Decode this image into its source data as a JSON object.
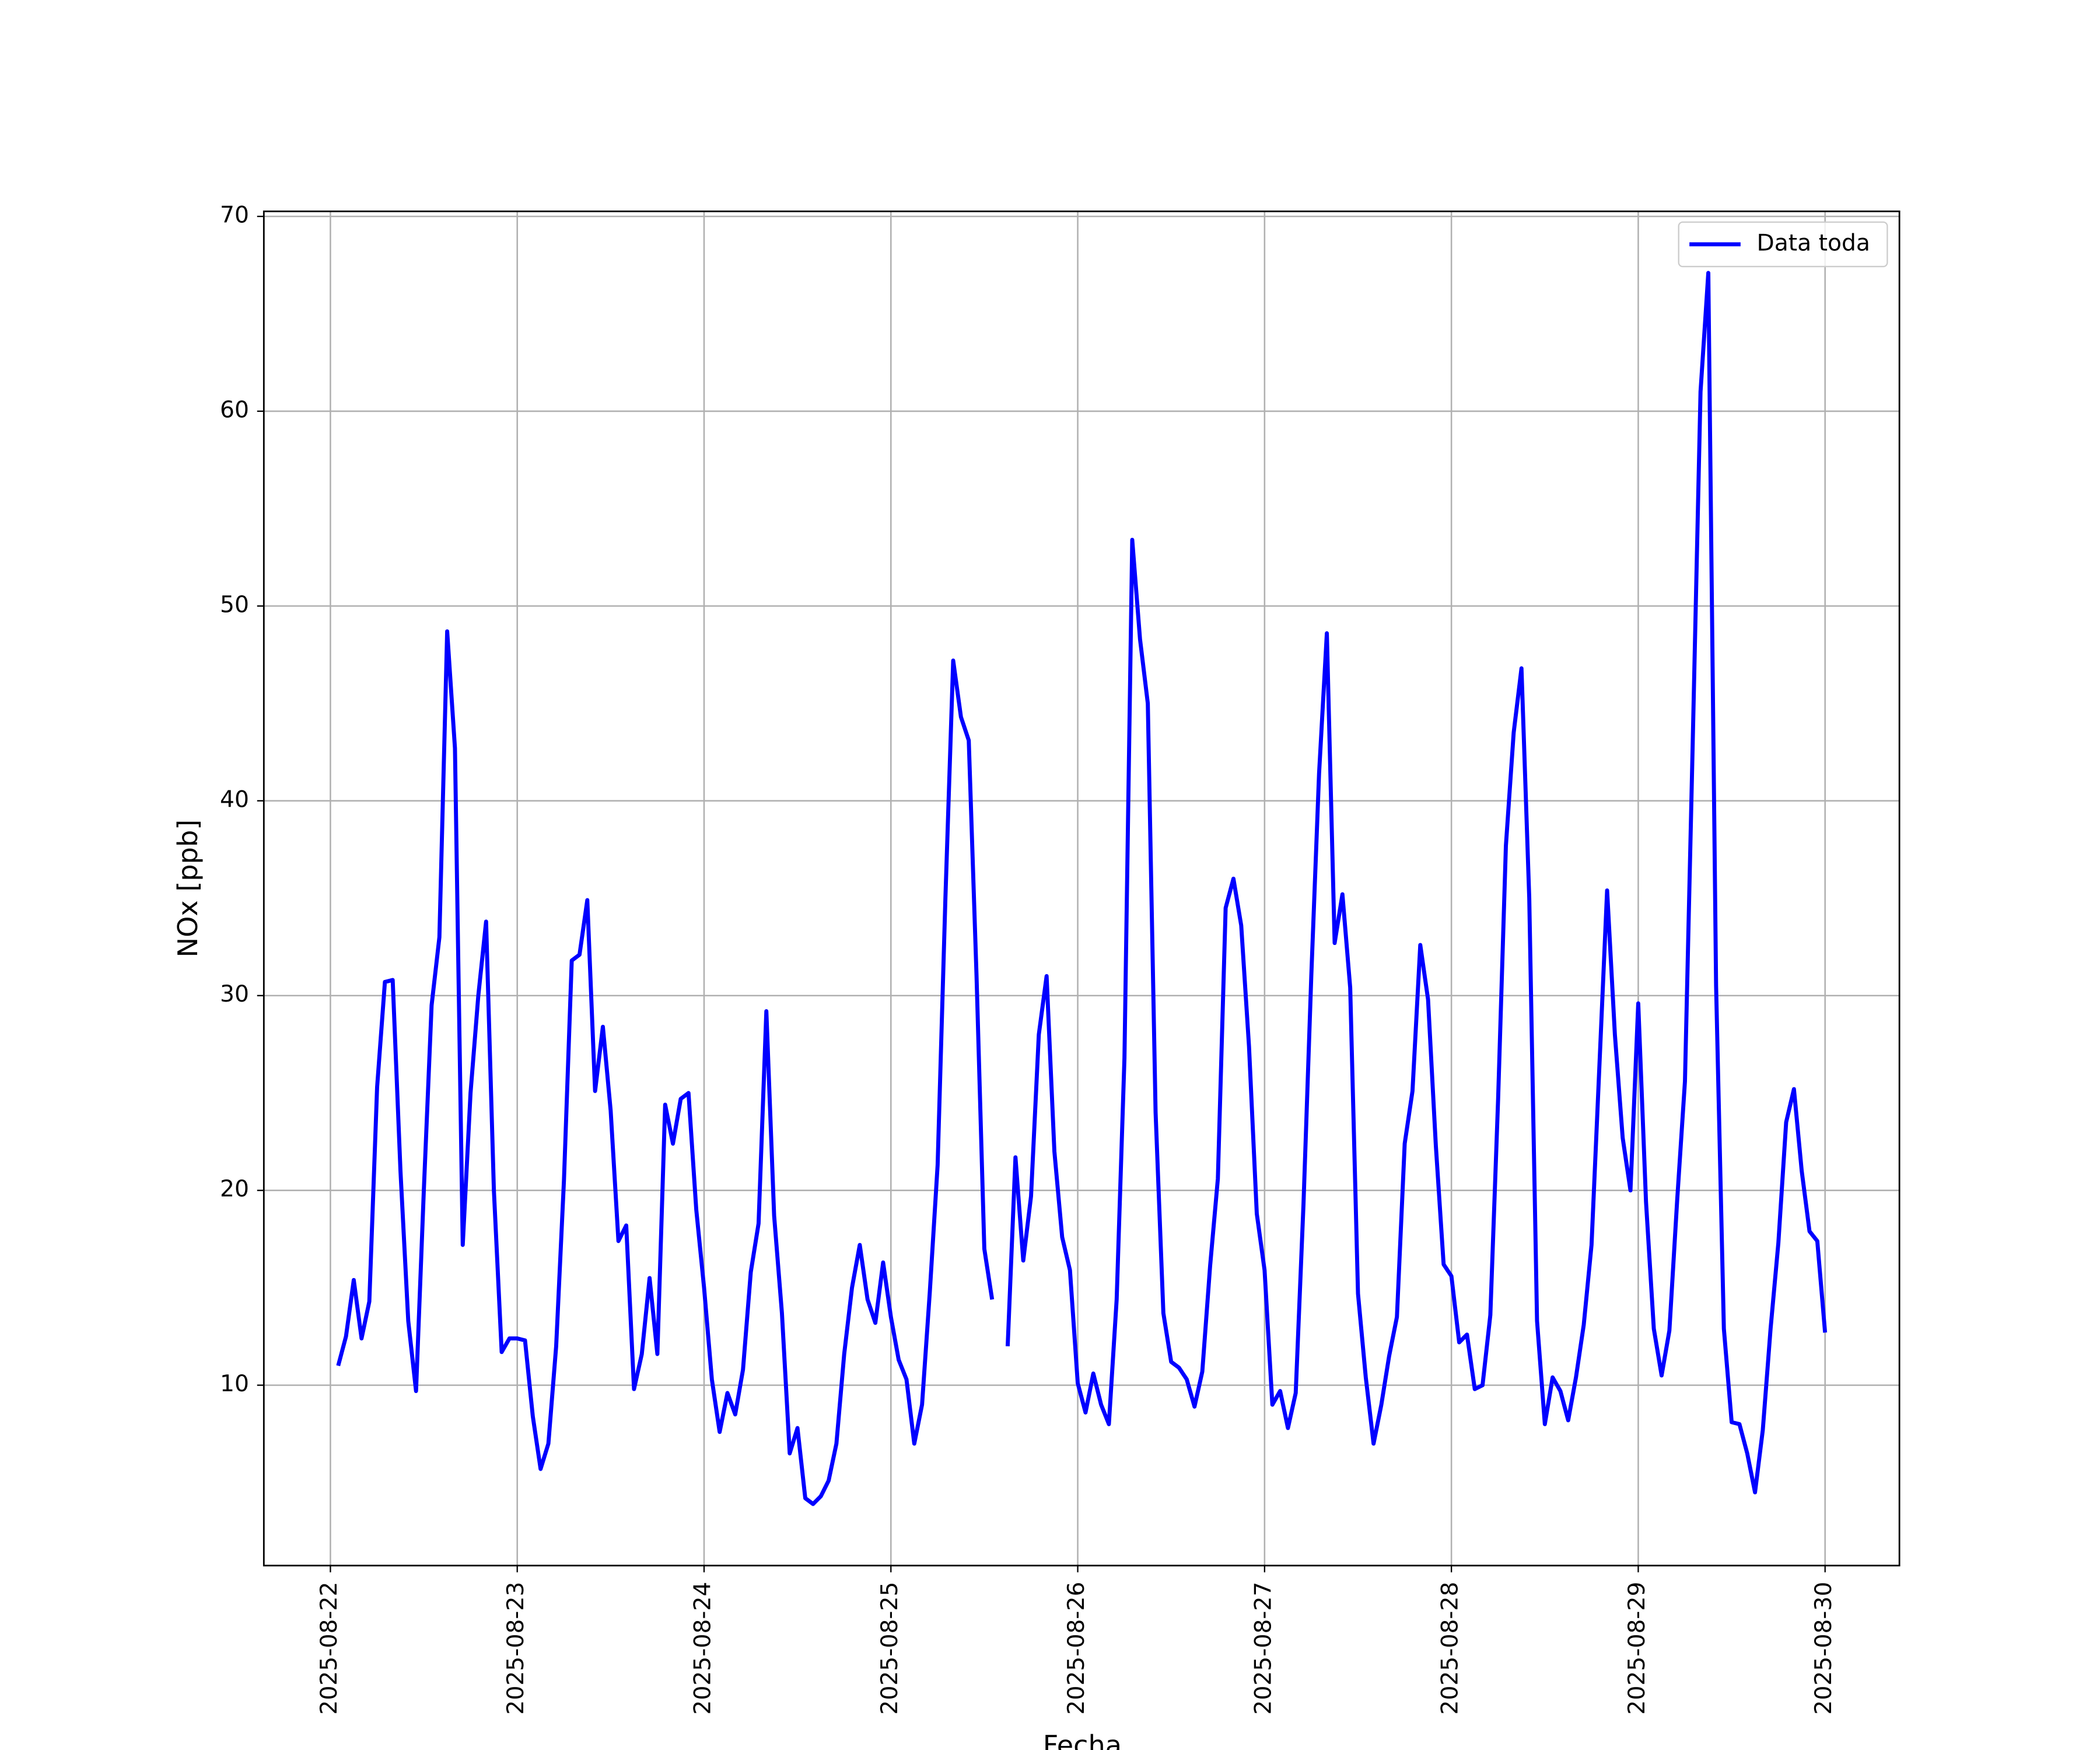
{
  "chart_data": {
    "type": "line",
    "xlabel": "Fecha",
    "ylabel": "NOx [ppb]",
    "x": [
      "2025-08-22 01:00",
      "2025-08-22 02:00",
      "2025-08-22 03:00",
      "2025-08-22 04:00",
      "2025-08-22 05:00",
      "2025-08-22 06:00",
      "2025-08-22 07:00",
      "2025-08-22 08:00",
      "2025-08-22 09:00",
      "2025-08-22 10:00",
      "2025-08-22 11:00",
      "2025-08-22 12:00",
      "2025-08-22 13:00",
      "2025-08-22 14:00",
      "2025-08-22 15:00",
      "2025-08-22 16:00",
      "2025-08-22 17:00",
      "2025-08-22 18:00",
      "2025-08-22 19:00",
      "2025-08-22 20:00",
      "2025-08-22 21:00",
      "2025-08-22 22:00",
      "2025-08-22 23:00",
      "2025-08-23 00:00",
      "2025-08-23 01:00",
      "2025-08-23 02:00",
      "2025-08-23 03:00",
      "2025-08-23 04:00",
      "2025-08-23 05:00",
      "2025-08-23 06:00",
      "2025-08-23 07:00",
      "2025-08-23 08:00",
      "2025-08-23 09:00",
      "2025-08-23 10:00",
      "2025-08-23 11:00",
      "2025-08-23 12:00",
      "2025-08-23 13:00",
      "2025-08-23 14:00",
      "2025-08-23 15:00",
      "2025-08-23 16:00",
      "2025-08-23 17:00",
      "2025-08-23 18:00",
      "2025-08-23 19:00",
      "2025-08-23 20:00",
      "2025-08-23 21:00",
      "2025-08-23 22:00",
      "2025-08-23 23:00",
      "2025-08-24 00:00",
      "2025-08-24 01:00",
      "2025-08-24 02:00",
      "2025-08-24 03:00",
      "2025-08-24 04:00",
      "2025-08-24 05:00",
      "2025-08-24 06:00",
      "2025-08-24 07:00",
      "2025-08-24 08:00",
      "2025-08-24 09:00",
      "2025-08-24 10:00",
      "2025-08-24 11:00",
      "2025-08-24 12:00",
      "2025-08-24 13:00",
      "2025-08-24 14:00",
      "2025-08-24 15:00",
      "2025-08-24 16:00",
      "2025-08-24 17:00",
      "2025-08-24 18:00",
      "2025-08-24 19:00",
      "2025-08-24 20:00",
      "2025-08-24 21:00",
      "2025-08-24 22:00",
      "2025-08-24 23:00",
      "2025-08-25 00:00",
      "2025-08-25 01:00",
      "2025-08-25 02:00",
      "2025-08-25 03:00",
      "2025-08-25 04:00",
      "2025-08-25 05:00",
      "2025-08-25 06:00",
      "2025-08-25 07:00",
      "2025-08-25 08:00",
      "2025-08-25 09:00",
      "2025-08-25 10:00",
      "2025-08-25 11:00",
      "2025-08-25 12:00",
      "2025-08-25 13:00",
      "2025-08-25 14:00",
      "2025-08-25 15:00",
      "2025-08-25 16:00",
      "2025-08-25 17:00",
      "2025-08-25 18:00",
      "2025-08-25 19:00",
      "2025-08-25 20:00",
      "2025-08-25 21:00",
      "2025-08-25 22:00",
      "2025-08-25 23:00",
      "2025-08-26 00:00",
      "2025-08-26 01:00",
      "2025-08-26 02:00",
      "2025-08-26 03:00",
      "2025-08-26 04:00",
      "2025-08-26 05:00",
      "2025-08-26 06:00",
      "2025-08-26 07:00",
      "2025-08-26 08:00",
      "2025-08-26 09:00",
      "2025-08-26 10:00",
      "2025-08-26 11:00",
      "2025-08-26 12:00",
      "2025-08-26 13:00",
      "2025-08-26 14:00",
      "2025-08-26 15:00",
      "2025-08-26 16:00",
      "2025-08-26 17:00",
      "2025-08-26 18:00",
      "2025-08-26 19:00",
      "2025-08-26 20:00",
      "2025-08-26 21:00",
      "2025-08-26 22:00",
      "2025-08-26 23:00",
      "2025-08-27 00:00",
      "2025-08-27 01:00",
      "2025-08-27 02:00",
      "2025-08-27 03:00",
      "2025-08-27 04:00",
      "2025-08-27 05:00",
      "2025-08-27 06:00",
      "2025-08-27 07:00",
      "2025-08-27 08:00",
      "2025-08-27 09:00",
      "2025-08-27 10:00",
      "2025-08-27 11:00",
      "2025-08-27 12:00",
      "2025-08-27 13:00",
      "2025-08-27 14:00",
      "2025-08-27 15:00",
      "2025-08-27 16:00",
      "2025-08-27 17:00",
      "2025-08-27 18:00",
      "2025-08-27 19:00",
      "2025-08-27 20:00",
      "2025-08-27 21:00",
      "2025-08-27 22:00",
      "2025-08-27 23:00",
      "2025-08-28 00:00",
      "2025-08-28 01:00",
      "2025-08-28 02:00",
      "2025-08-28 03:00",
      "2025-08-28 04:00",
      "2025-08-28 05:00",
      "2025-08-28 06:00",
      "2025-08-28 07:00",
      "2025-08-28 08:00",
      "2025-08-28 09:00",
      "2025-08-28 10:00",
      "2025-08-28 11:00",
      "2025-08-28 12:00",
      "2025-08-28 13:00",
      "2025-08-28 14:00",
      "2025-08-28 15:00",
      "2025-08-28 16:00",
      "2025-08-28 17:00",
      "2025-08-28 18:00",
      "2025-08-28 19:00",
      "2025-08-28 20:00",
      "2025-08-28 21:00",
      "2025-08-28 22:00",
      "2025-08-28 23:00",
      "2025-08-29 00:00",
      "2025-08-29 01:00",
      "2025-08-29 02:00",
      "2025-08-29 03:00",
      "2025-08-29 04:00",
      "2025-08-29 05:00",
      "2025-08-29 06:00",
      "2025-08-29 07:00",
      "2025-08-29 08:00",
      "2025-08-29 09:00",
      "2025-08-29 10:00",
      "2025-08-29 11:00",
      "2025-08-29 12:00",
      "2025-08-29 13:00",
      "2025-08-29 14:00",
      "2025-08-29 15:00",
      "2025-08-29 16:00",
      "2025-08-29 17:00",
      "2025-08-29 18:00",
      "2025-08-29 19:00",
      "2025-08-29 20:00",
      "2025-08-29 21:00",
      "2025-08-29 22:00",
      "2025-08-29 23:00",
      "2025-08-30 00:00"
    ],
    "series": [
      {
        "name": "Data toda",
        "color": "#0000ff",
        "values": [
          11.0,
          12.5,
          15.4,
          12.4,
          14.3,
          25.3,
          30.7,
          30.8,
          21.0,
          13.3,
          9.7,
          20.0,
          29.5,
          33.0,
          48.7,
          42.7,
          17.2,
          25.0,
          30.0,
          33.8,
          20.0,
          11.7,
          12.4,
          12.4,
          12.3,
          8.4,
          5.7,
          7.0,
          12.0,
          20.5,
          31.8,
          32.1,
          34.9,
          25.1,
          28.4,
          24.1,
          17.4,
          18.2,
          9.8,
          11.6,
          15.5,
          11.6,
          24.4,
          22.4,
          24.7,
          25.0,
          19.0,
          15.0,
          10.3,
          7.6,
          9.6,
          8.5,
          10.8,
          15.8,
          18.3,
          29.2,
          18.7,
          13.7,
          6.5,
          7.8,
          4.2,
          3.9,
          4.3,
          5.1,
          7.0,
          11.6,
          15.0,
          17.2,
          14.4,
          13.2,
          16.3,
          13.5,
          11.3,
          10.3,
          7.0,
          9.0,
          14.8,
          21.3,
          35.0,
          47.2,
          44.3,
          43.1,
          31.0,
          17.0,
          14.4,
          null,
          12.0,
          21.7,
          16.4,
          19.7,
          28.0,
          31.0,
          22.0,
          17.6,
          15.9,
          10.1,
          8.6,
          10.6,
          9.0,
          8.0,
          14.4,
          26.8,
          53.4,
          48.3,
          45.0,
          24.0,
          13.7,
          11.2,
          10.9,
          10.3,
          8.9,
          10.7,
          16.1,
          20.6,
          34.5,
          36.0,
          33.6,
          27.4,
          18.8,
          15.9,
          9.0,
          9.7,
          7.8,
          9.6,
          19.3,
          31.0,
          41.4,
          48.6,
          32.7,
          35.2,
          30.4,
          14.7,
          10.4,
          7.0,
          9.0,
          11.5,
          13.5,
          22.4,
          25.1,
          32.6,
          29.8,
          22.3,
          16.2,
          15.6,
          12.2,
          12.6,
          9.8,
          10.0,
          13.6,
          24.7,
          37.7,
          43.5,
          46.8,
          35.0,
          13.3,
          8.0,
          10.4,
          9.7,
          8.2,
          10.4,
          13.1,
          17.2,
          26.3,
          35.4,
          28.0,
          22.7,
          20.0,
          29.6,
          19.4,
          12.9,
          10.5,
          12.8,
          19.5,
          25.6,
          43.0,
          61.0,
          67.1,
          30.5,
          12.9,
          8.1,
          8.0,
          6.5,
          4.5,
          7.7,
          12.9,
          17.3,
          23.5,
          25.2,
          21.0,
          17.9,
          17.4,
          12.7
        ]
      }
    ],
    "xlim": [
      "2025-08-21 15:27",
      "2025-08-30 09:33"
    ],
    "xticks": [
      "2025-08-22",
      "2025-08-23",
      "2025-08-24",
      "2025-08-25",
      "2025-08-26",
      "2025-08-27",
      "2025-08-28",
      "2025-08-29",
      "2025-08-30"
    ],
    "ylim": [
      0.74,
      70.26
    ],
    "yticks": [
      10,
      20,
      30,
      40,
      50,
      60,
      70
    ],
    "grid": true,
    "legend": "upper right"
  }
}
